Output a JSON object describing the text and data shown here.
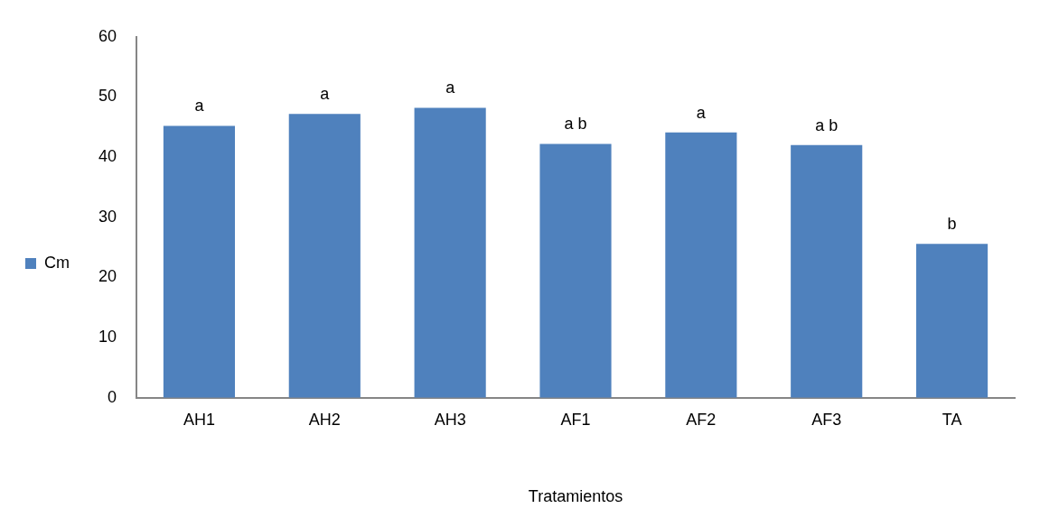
{
  "chart_data": {
    "type": "bar",
    "xlabel": "Tratamientos",
    "categories": [
      "AH1",
      "AH2",
      "AH3",
      "AF1",
      "AF2",
      "AF3",
      "TA"
    ],
    "series": [
      {
        "name": "Cm",
        "color": "#4f81bd",
        "values": [
          45.2,
          47.2,
          48.2,
          42.2,
          44.1,
          42.0,
          25.6
        ]
      }
    ],
    "ylim": [
      0,
      60
    ],
    "yticks": [
      0,
      10,
      20,
      30,
      40,
      50,
      60
    ],
    "grid": false,
    "legend": "left",
    "annotations": [
      {
        "text": "a",
        "x": "AH1",
        "y": 45.2
      },
      {
        "text": "a",
        "x": "AH2",
        "y": 47.2
      },
      {
        "text": "a",
        "x": "AH3",
        "y": 48.2
      },
      {
        "text": "a b",
        "x": "AF1",
        "y": 42.2
      },
      {
        "text": "a",
        "x": "AF2",
        "y": 44.1
      },
      {
        "text": "a b",
        "x": "AF3",
        "y": 42.0
      },
      {
        "text": "b",
        "x": "TA",
        "y": 25.6
      }
    ]
  }
}
